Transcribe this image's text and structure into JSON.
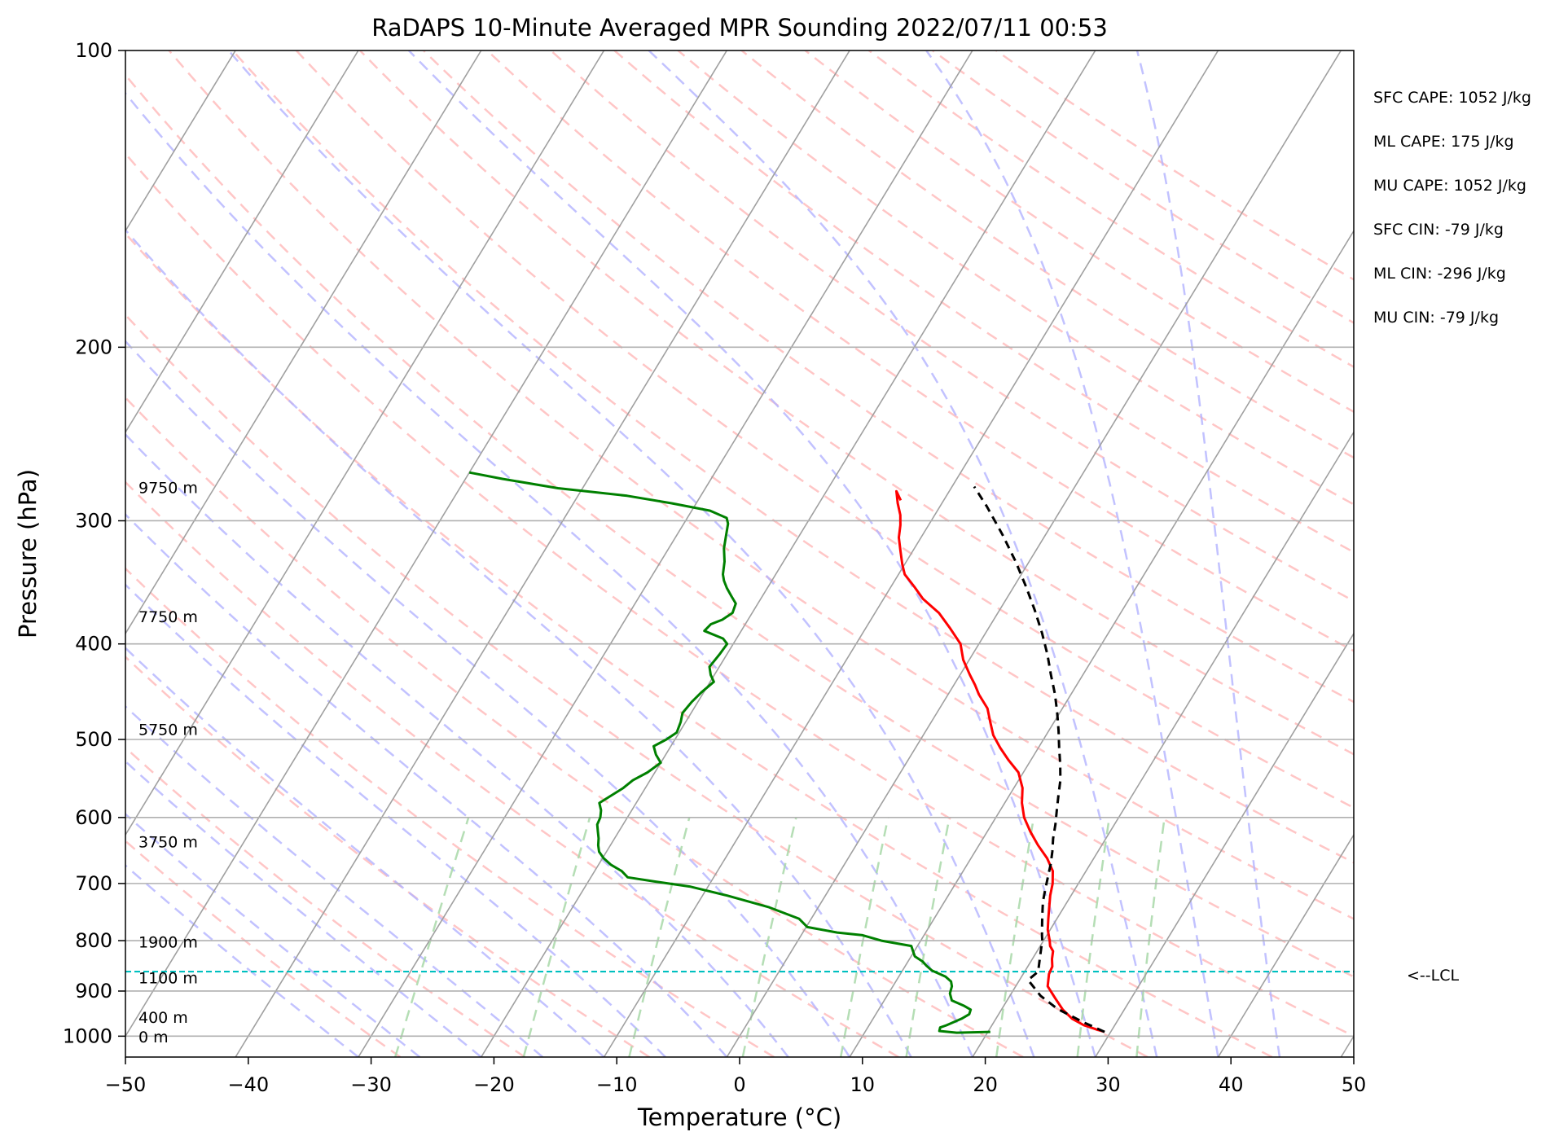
{
  "chart_data": {
    "type": "line",
    "chart_kind": "skew-T log-P sounding",
    "title": "RaDAPS 10-Minute Averaged MPR Sounding 2022/07/11 00:53",
    "xlabel": "Temperature (°C)",
    "ylabel": "Pressure (hPa)",
    "xlim": [
      -50,
      50
    ],
    "ylim": [
      1050,
      100
    ],
    "y_scale": "log",
    "x_ticks": [
      "−50",
      "−40",
      "−30",
      "−20",
      "−10",
      "0",
      "10",
      "20",
      "30",
      "40",
      "50"
    ],
    "y_ticks": [
      "100",
      "200",
      "300",
      "400",
      "500",
      "600",
      "700",
      "800",
      "900",
      "1000"
    ],
    "y_tick_values": [
      100,
      200,
      300,
      400,
      500,
      600,
      700,
      800,
      900,
      1000
    ],
    "grid": true,
    "background_lines": {
      "isotherms": {
        "color": "#a0a0a0",
        "style": "solid"
      },
      "dry_adiabats": {
        "color": "#ffb3b3",
        "style": "dashed"
      },
      "moist_adiabats": {
        "color": "#b3b3ff",
        "style": "dashed"
      },
      "mixing_ratio_lines": {
        "color": "#a8d8a8",
        "style": "dashed"
      }
    },
    "series": [
      {
        "role": "temperature",
        "color": "#ff0000",
        "points": [
          [
            29.5,
            990
          ],
          [
            28.8,
            985
          ],
          [
            27.5,
            975
          ],
          [
            26.2,
            960
          ],
          [
            25.0,
            940
          ],
          [
            23.8,
            915
          ],
          [
            22.6,
            890
          ],
          [
            22.1,
            865
          ],
          [
            22.0,
            850
          ],
          [
            21.6,
            835
          ],
          [
            21.3,
            820
          ],
          [
            20.8,
            810
          ],
          [
            20.5,
            800
          ],
          [
            19.8,
            780
          ],
          [
            19.3,
            760
          ],
          [
            18.8,
            740
          ],
          [
            18.3,
            720
          ],
          [
            17.9,
            700
          ],
          [
            17.3,
            680
          ],
          [
            16.2,
            660
          ],
          [
            14.8,
            640
          ],
          [
            13.5,
            620
          ],
          [
            12.3,
            600
          ],
          [
            11.4,
            580
          ],
          [
            10.7,
            560
          ],
          [
            9.6,
            540
          ],
          [
            8.2,
            525
          ],
          [
            6.9,
            510
          ],
          [
            5.7,
            495
          ],
          [
            4.8,
            480
          ],
          [
            3.9,
            465
          ],
          [
            2.5,
            450
          ],
          [
            1.7,
            440
          ],
          [
            0.8,
            430
          ],
          [
            -0.5,
            415
          ],
          [
            -1.5,
            400
          ],
          [
            -3.2,
            385
          ],
          [
            -4.8,
            372
          ],
          [
            -6.8,
            360
          ],
          [
            -8.1,
            350
          ],
          [
            -9.5,
            340
          ],
          [
            -10.2,
            332
          ],
          [
            -11.0,
            322
          ],
          [
            -11.8,
            312
          ],
          [
            -12.3,
            303
          ],
          [
            -12.8,
            296
          ],
          [
            -13.6,
            288
          ],
          [
            -14.3,
            280
          ],
          [
            -13.5,
            286
          ]
        ]
      },
      {
        "role": "dewpoint",
        "color": "#008000",
        "points": [
          [
            20.2,
            990
          ],
          [
            17.5,
            992
          ],
          [
            16.0,
            988
          ],
          [
            15.9,
            980
          ],
          [
            16.3,
            975
          ],
          [
            17.2,
            960
          ],
          [
            17.6,
            950
          ],
          [
            17.5,
            940
          ],
          [
            16.8,
            932
          ],
          [
            15.5,
            920
          ],
          [
            15.0,
            905
          ],
          [
            14.8,
            890
          ],
          [
            14.5,
            880
          ],
          [
            13.8,
            870
          ],
          [
            12.4,
            858
          ],
          [
            11.7,
            848
          ],
          [
            11.2,
            840
          ],
          [
            10.3,
            830
          ],
          [
            9.9,
            820
          ],
          [
            9.5,
            810
          ],
          [
            6.8,
            800
          ],
          [
            5.0,
            790
          ],
          [
            2.8,
            785
          ],
          [
            0.1,
            775
          ],
          [
            -1.0,
            760
          ],
          [
            -4.0,
            740
          ],
          [
            -8.0,
            720
          ],
          [
            -11.5,
            705
          ],
          [
            -14.5,
            697
          ],
          [
            -17.0,
            690
          ],
          [
            -17.8,
            680
          ],
          [
            -19.0,
            670
          ],
          [
            -19.9,
            660
          ],
          [
            -20.6,
            650
          ],
          [
            -21.0,
            640
          ],
          [
            -21.3,
            630
          ],
          [
            -21.7,
            620
          ],
          [
            -22.1,
            610
          ],
          [
            -22.2,
            600
          ],
          [
            -22.5,
            590
          ],
          [
            -23.0,
            580
          ],
          [
            -22.4,
            570
          ],
          [
            -21.8,
            560
          ],
          [
            -21.4,
            550
          ],
          [
            -20.6,
            540
          ],
          [
            -20.0,
            528
          ],
          [
            -20.8,
            518
          ],
          [
            -21.4,
            508
          ],
          [
            -20.7,
            500
          ],
          [
            -20.2,
            492
          ],
          [
            -20.4,
            480
          ],
          [
            -20.7,
            470
          ],
          [
            -20.5,
            458
          ],
          [
            -20.2,
            448
          ],
          [
            -19.7,
            437
          ],
          [
            -20.3,
            430
          ],
          [
            -20.8,
            422
          ],
          [
            -20.6,
            410
          ],
          [
            -20.5,
            400
          ],
          [
            -21.1,
            395
          ],
          [
            -23.0,
            388
          ],
          [
            -22.8,
            382
          ],
          [
            -22.1,
            378
          ],
          [
            -21.6,
            372
          ],
          [
            -21.8,
            364
          ],
          [
            -22.5,
            358
          ],
          [
            -23.3,
            351
          ],
          [
            -23.9,
            345
          ],
          [
            -24.3,
            340
          ],
          [
            -24.8,
            330
          ],
          [
            -25.5,
            320
          ],
          [
            -26.0,
            310
          ],
          [
            -26.4,
            302
          ],
          [
            -26.8,
            298
          ],
          [
            -28.5,
            293
          ],
          [
            -32.0,
            288
          ],
          [
            -36.0,
            283
          ],
          [
            -42.0,
            278
          ],
          [
            -47.0,
            272
          ],
          [
            -50.0,
            268
          ]
        ]
      },
      {
        "role": "parcel profile",
        "color": "#000000",
        "points": [
          [
            29.5,
            990
          ],
          [
            28.5,
            980
          ],
          [
            27.3,
            968
          ],
          [
            25.9,
            953
          ],
          [
            24.5,
            938
          ],
          [
            22.5,
            910
          ],
          [
            20.7,
            877
          ],
          [
            21.1,
            860
          ],
          [
            20.8,
            845
          ],
          [
            20.5,
            830
          ],
          [
            20.2,
            815
          ],
          [
            19.9,
            800
          ],
          [
            19.6,
            790
          ],
          [
            19.2,
            775
          ],
          [
            18.8,
            760
          ],
          [
            18.4,
            745
          ],
          [
            18.0,
            730
          ],
          [
            17.7,
            715
          ],
          [
            17.4,
            700
          ],
          [
            17.1,
            685
          ],
          [
            16.8,
            670
          ],
          [
            16.3,
            650
          ],
          [
            15.7,
            630
          ],
          [
            15.2,
            610
          ],
          [
            14.6,
            590
          ],
          [
            14.0,
            570
          ],
          [
            13.4,
            550
          ],
          [
            12.6,
            530
          ],
          [
            11.7,
            510
          ],
          [
            10.8,
            490
          ],
          [
            9.8,
            470
          ],
          [
            8.7,
            450
          ],
          [
            7.4,
            430
          ],
          [
            6.1,
            410
          ],
          [
            4.6,
            390
          ],
          [
            2.9,
            370
          ],
          [
            1.0,
            350
          ],
          [
            -1.1,
            330
          ],
          [
            -3.5,
            310
          ],
          [
            -6.2,
            290
          ],
          [
            -8.2,
            277
          ]
        ]
      }
    ],
    "lcl": {
      "pressure": 860,
      "label": "<--LCL",
      "color": "#00c0c0"
    },
    "height_labels": [
      {
        "text": "9750 m",
        "pressure": 278
      },
      {
        "text": "7750 m",
        "pressure": 376
      },
      {
        "text": "5750 m",
        "pressure": 489
      },
      {
        "text": "3750 m",
        "pressure": 636
      },
      {
        "text": "1900 m",
        "pressure": 804
      },
      {
        "text": "1100 m",
        "pressure": 874
      },
      {
        "text": "400 m",
        "pressure": 958
      },
      {
        "text": "0 m",
        "pressure": 1003
      }
    ],
    "stats": [
      "SFC CAPE: 1052 J/kg",
      "ML CAPE: 175 J/kg",
      "MU CAPE: 1052 J/kg",
      "SFC CIN: -79 J/kg",
      "ML CIN: -296 J/kg",
      "MU CIN: -79 J/kg"
    ]
  }
}
